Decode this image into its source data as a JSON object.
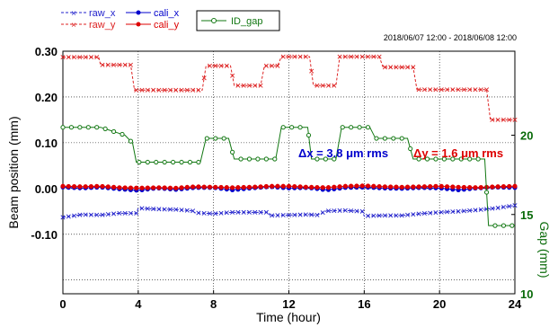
{
  "chart_data": {
    "type": "line",
    "date_range": "2018/06/07 12:00 - 2018/06/08 12:00",
    "xlabel": "Time (hour)",
    "ylabel": "Beam position (mm)",
    "y2label": "Gap (mm)",
    "xlim": [
      0,
      24
    ],
    "ylim": [
      -0.23,
      0.3
    ],
    "y2lim": [
      10,
      25.3
    ],
    "xticks": [
      0,
      4,
      8,
      12,
      16,
      20,
      24
    ],
    "yticks": [
      -0.1,
      0.0,
      0.1,
      0.2,
      0.3
    ],
    "ytick_labels": [
      "-0.10",
      "0.00",
      "0.10",
      "0.20",
      "0.30"
    ],
    "y2ticks": [
      10,
      15,
      20
    ],
    "grid": true,
    "legend_placement": "top-left",
    "colors": {
      "raw_x": "#2222cc",
      "raw_y": "#dd2222",
      "cali_x": "#0000cc",
      "cali_y": "#dd0000",
      "ID_gap": "#117711",
      "right_axis": "#0a6b0a"
    },
    "annotations": {
      "dx": "Δx = 3.8 μm rms",
      "dy": "Δy = 1.6 μm rms"
    },
    "series": [
      {
        "name": "raw_x",
        "axis": "left",
        "style": "dashed-x",
        "points": [
          [
            0,
            -0.063
          ],
          [
            1,
            -0.057
          ],
          [
            2,
            -0.058
          ],
          [
            3,
            -0.054
          ],
          [
            3.9,
            -0.054
          ],
          [
            4,
            -0.043
          ],
          [
            5,
            -0.045
          ],
          [
            6,
            -0.046
          ],
          [
            6.9,
            -0.049
          ],
          [
            7,
            -0.053
          ],
          [
            8,
            -0.055
          ],
          [
            9,
            -0.052
          ],
          [
            10,
            -0.052
          ],
          [
            10.9,
            -0.052
          ],
          [
            11,
            -0.059
          ],
          [
            12,
            -0.058
          ],
          [
            13,
            -0.057
          ],
          [
            13.5,
            -0.058
          ],
          [
            14,
            -0.049
          ],
          [
            15,
            -0.048
          ],
          [
            15.9,
            -0.05
          ],
          [
            16,
            -0.06
          ],
          [
            17,
            -0.059
          ],
          [
            18,
            -0.059
          ],
          [
            19,
            -0.055
          ],
          [
            20,
            -0.052
          ],
          [
            21,
            -0.05
          ],
          [
            22,
            -0.047
          ],
          [
            23,
            -0.043
          ],
          [
            24,
            -0.037
          ]
        ]
      },
      {
        "name": "raw_y",
        "axis": "left",
        "style": "dashed-x",
        "points": [
          [
            0,
            0.287
          ],
          [
            1.9,
            0.287
          ],
          [
            2,
            0.27
          ],
          [
            3.6,
            0.27
          ],
          [
            3.8,
            0.215
          ],
          [
            7.4,
            0.215
          ],
          [
            7.6,
            0.268
          ],
          [
            8.9,
            0.268
          ],
          [
            9.1,
            0.225
          ],
          [
            10.5,
            0.225
          ],
          [
            10.7,
            0.268
          ],
          [
            11.4,
            0.268
          ],
          [
            11.6,
            0.288
          ],
          [
            13.1,
            0.288
          ],
          [
            13.3,
            0.225
          ],
          [
            14.5,
            0.225
          ],
          [
            14.7,
            0.288
          ],
          [
            16.8,
            0.288
          ],
          [
            17,
            0.265
          ],
          [
            18.6,
            0.265
          ],
          [
            18.8,
            0.216
          ],
          [
            22.5,
            0.216
          ],
          [
            22.7,
            0.15
          ],
          [
            24,
            0.15
          ]
        ]
      },
      {
        "name": "cali_x",
        "axis": "left",
        "style": "solid-dot",
        "points": [
          [
            0,
            0.003
          ],
          [
            1,
            0.001
          ],
          [
            2,
            0.003
          ],
          [
            3,
            -0.001
          ],
          [
            4,
            -0.004
          ],
          [
            5,
            0.001
          ],
          [
            6,
            -0.002
          ],
          [
            7,
            0.002
          ],
          [
            8,
            0.002
          ],
          [
            9,
            -0.003
          ],
          [
            10,
            0.001
          ],
          [
            11,
            0.004
          ],
          [
            12,
            0.001
          ],
          [
            13,
            0.002
          ],
          [
            14,
            -0.003
          ],
          [
            15,
            0.002
          ],
          [
            16,
            0.003
          ],
          [
            17,
            0.001
          ],
          [
            18,
            0.0
          ],
          [
            19,
            0.002
          ],
          [
            20,
            0.001
          ],
          [
            21,
            -0.003
          ],
          [
            22,
            0.001
          ],
          [
            23,
            0.003
          ],
          [
            24,
            0.002
          ]
        ]
      },
      {
        "name": "cali_y",
        "axis": "left",
        "style": "solid-dot",
        "points": [
          [
            0,
            0.005
          ],
          [
            1,
            0.004
          ],
          [
            2,
            0.005
          ],
          [
            3,
            0.002
          ],
          [
            4,
            0.001
          ],
          [
            5,
            0.002
          ],
          [
            6,
            0.001
          ],
          [
            7,
            0.004
          ],
          [
            8,
            0.003
          ],
          [
            9,
            0.002
          ],
          [
            10,
            0.003
          ],
          [
            11,
            0.005
          ],
          [
            12,
            0.005
          ],
          [
            13,
            0.003
          ],
          [
            14,
            0.002
          ],
          [
            15,
            0.005
          ],
          [
            16,
            0.006
          ],
          [
            17,
            0.004
          ],
          [
            18,
            0.003
          ],
          [
            19,
            0.004
          ],
          [
            20,
            0.005
          ],
          [
            21,
            0.003
          ],
          [
            22,
            0.002
          ],
          [
            23,
            0.004
          ],
          [
            24,
            0.005
          ]
        ]
      },
      {
        "name": "ID_gap",
        "axis": "right",
        "style": "solid-circle",
        "points": [
          [
            0,
            20.5
          ],
          [
            2,
            20.5
          ],
          [
            3.3,
            20.0
          ],
          [
            3.7,
            19.5
          ],
          [
            3.9,
            18.3
          ],
          [
            7.3,
            18.3
          ],
          [
            7.6,
            19.8
          ],
          [
            8.8,
            19.8
          ],
          [
            9.1,
            18.5
          ],
          [
            11.3,
            18.5
          ],
          [
            11.6,
            20.5
          ],
          [
            13.0,
            20.5
          ],
          [
            13.2,
            18.5
          ],
          [
            14.5,
            18.5
          ],
          [
            14.8,
            20.5
          ],
          [
            16.3,
            20.5
          ],
          [
            16.6,
            19.8
          ],
          [
            18.3,
            19.8
          ],
          [
            18.6,
            18.5
          ],
          [
            22.4,
            18.5
          ],
          [
            22.6,
            14.3
          ],
          [
            24,
            14.3
          ]
        ]
      }
    ]
  }
}
